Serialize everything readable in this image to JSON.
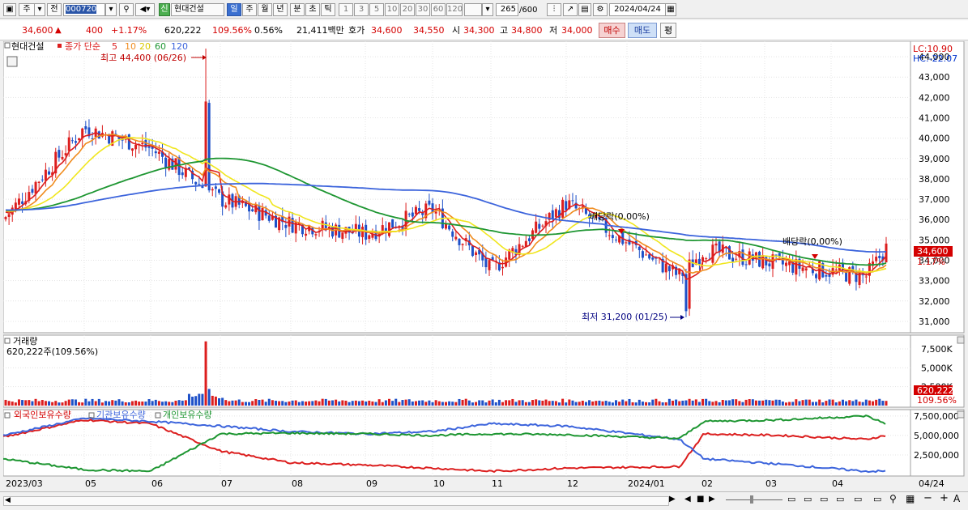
{
  "toolbar": {
    "market_label": "주",
    "prev_label": "전",
    "code_value": "000720",
    "credit_label": "신",
    "stock_name": "현대건설",
    "period_buttons": [
      "일",
      "주",
      "월",
      "년",
      "분",
      "초",
      "틱"
    ],
    "interval_buttons": [
      "1",
      "3",
      "5",
      "10",
      "20",
      "30",
      "60",
      "120"
    ],
    "count_value": "265",
    "count_total": "/600",
    "date_value": "2024/04/24"
  },
  "quote": {
    "price": "34,600",
    "arrow": "▲",
    "change": "400",
    "change_pct": "+1.17%",
    "volume": "620,222",
    "volume_ratio": "109.56%",
    "turnover": "0.56%",
    "amount": "21,411백만",
    "bid_label": "호가",
    "ask": "34,600",
    "bid": "34,550",
    "open_label": "시",
    "open": "34,300",
    "high_label": "고",
    "high": "34,800",
    "low_label": "저",
    "low": "34,000",
    "buy_label": "매수",
    "sell_label": "매도",
    "avg_label": "평"
  },
  "price_panel": {
    "name_tag": "현대건설",
    "ma_legend_title": "종가 단순",
    "ma_periods": [
      "5",
      "10",
      "20",
      "60",
      "120"
    ],
    "ma_colors": [
      "#dc1e1e",
      "#f08c1e",
      "#f0e61e",
      "#1e9632",
      "#3c64dc"
    ],
    "high_annotation": "최고 44,400 (06/26)",
    "low_annotation": "최저 31,200 (01/25)",
    "dividend_1": "배당락(0,00%)",
    "dividend_2": "배당락(0,00%)",
    "lc": "LC:10.90",
    "hc": "HC:-22.07",
    "current_price_tag": "34,600",
    "current_pct_tag": "1.17%",
    "y_ticks": [
      "44,000",
      "43,000",
      "42,000",
      "41,000",
      "40,000",
      "39,000",
      "38,000",
      "37,000",
      "36,000",
      "35,000",
      "34,000",
      "33,000",
      "32,000",
      "31,000"
    ]
  },
  "volume_panel": {
    "title": "거래량",
    "value_text": "620,222주(109.56%)",
    "y_ticks": [
      "7,500K",
      "5,000K",
      "2,500K"
    ],
    "current_tag": "620,222",
    "current_pct": "109.56%"
  },
  "holdings_panel": {
    "legend_foreign": "외국인보유수량",
    "legend_inst": "기관보유수량",
    "legend_indiv": "개인보유수량",
    "y_ticks": [
      "7,500,000",
      "5,000,000",
      "2,500,000"
    ]
  },
  "x_axis": {
    "labels": [
      "2023/03",
      "05",
      "06",
      "07",
      "08",
      "09",
      "10",
      "11",
      "12",
      "2024/01",
      "02",
      "03",
      "04"
    ],
    "end_label": "04/24"
  },
  "chart_data": [
    {
      "type": "candlestick",
      "x": [
        "2023/03",
        "05",
        "06",
        "07",
        "08",
        "09",
        "10",
        "11",
        "12",
        "2024/01",
        "02",
        "03",
        "04",
        "04/24"
      ],
      "approx_close": [
        36000,
        40500,
        39500,
        37000,
        35800,
        35300,
        36500,
        33500,
        36800,
        33200,
        34500,
        33800,
        33200,
        34600
      ],
      "ylim": [
        30600,
        44600
      ],
      "max": 44400,
      "max_date": "06/26",
      "min": 31200,
      "min_date": "01/25"
    },
    {
      "type": "bar",
      "name": "거래량",
      "last_value": 620222,
      "ylim": [
        0,
        9000000
      ]
    },
    {
      "type": "line",
      "series": [
        {
          "name": "외국인보유수량",
          "color": "#dc1e1e",
          "values": [
            4800000,
            7000000,
            6500000,
            3000000,
            1500000,
            1200000,
            800000,
            400000,
            800000,
            1000000,
            5200000,
            5000000,
            4500000,
            5000000
          ]
        },
        {
          "name": "기관보유수량",
          "color": "#3c64dc",
          "values": [
            5000000,
            7200000,
            6800000,
            6200000,
            5500000,
            5200000,
            5500000,
            6500000,
            6200000,
            4500000,
            2000000,
            1300000,
            400000,
            400000
          ]
        },
        {
          "name": "개인보유수량",
          "color": "#1e9632",
          "values": [
            2000000,
            600000,
            400000,
            5200000,
            5300000,
            5200000,
            5000000,
            5200000,
            5100000,
            4600000,
            6800000,
            7000000,
            7500000,
            6500000
          ]
        }
      ],
      "ylim": [
        0,
        8000000
      ]
    }
  ]
}
